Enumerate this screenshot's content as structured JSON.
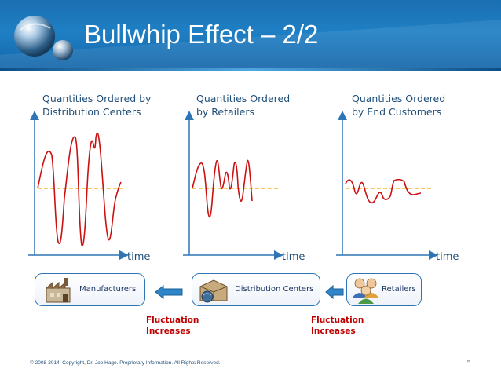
{
  "slide": {
    "title": "Bullwhip Effect – 2/2",
    "footer": "© 2008-2014. Copyright, Dr. Joe Hage. Proprietary Information. All Rights Reserved.",
    "page_number": "5"
  },
  "colors": {
    "banner": "#1f7fc4",
    "axis": "#2e75b6",
    "signal": "#cc1111",
    "baseline": "#f2a900",
    "fluctuation_text": "#c00000"
  },
  "panels": [
    {
      "title_line1": "Quantities Ordered by",
      "title_line2": "Distribution Centers",
      "x_axis_label": "time"
    },
    {
      "title_line1": "Quantities Ordered",
      "title_line2": "by Retailers",
      "x_axis_label": "time"
    },
    {
      "title_line1": "Quantities Ordered",
      "title_line2": "by End Customers",
      "x_axis_label": "time"
    }
  ],
  "supply_chain": [
    {
      "label": "Manufacturers",
      "icon": "factory-icon"
    },
    {
      "label": "Distribution Centers",
      "icon": "warehouse-box-icon"
    },
    {
      "label": "Retailers",
      "icon": "people-icon"
    }
  ],
  "flow_arrows": [
    "left-arrow-icon",
    "left-arrow-icon"
  ],
  "fluctuation_notes": [
    {
      "line1": "Fluctuation",
      "line2": "Increases"
    },
    {
      "line1": "Fluctuation",
      "line2": "Increases"
    }
  ]
}
